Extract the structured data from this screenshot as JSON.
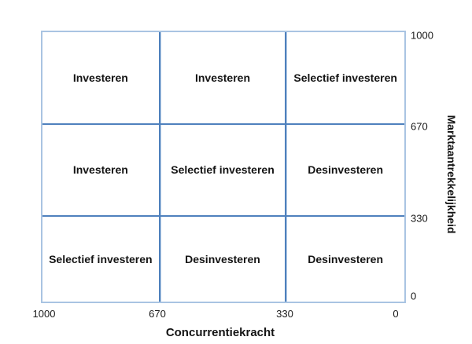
{
  "chart_data": {
    "type": "table",
    "title": "",
    "xlabel": "Concurrentiekracht",
    "ylabel": "Marktaantrekkelijkheid",
    "x_ticks": [
      "1000",
      "670",
      "330",
      "0"
    ],
    "y_ticks": [
      "1000",
      "670",
      "330",
      "0"
    ],
    "x_range": [
      1000,
      0
    ],
    "y_range": [
      0,
      1000
    ],
    "grid": true,
    "legend": "none",
    "cells": [
      [
        "Investeren",
        "Investeren",
        "Selectief investeren"
      ],
      [
        "Investeren",
        "Selectief investeren",
        "Desinvesteren"
      ],
      [
        "Selectief investeren",
        "Desinvesteren",
        "Desinvesteren"
      ]
    ]
  },
  "colors": {
    "grid_line": "#4f81bd",
    "outer_border": "#a9c4e2",
    "text": "#141414",
    "background": "#ffffff"
  }
}
